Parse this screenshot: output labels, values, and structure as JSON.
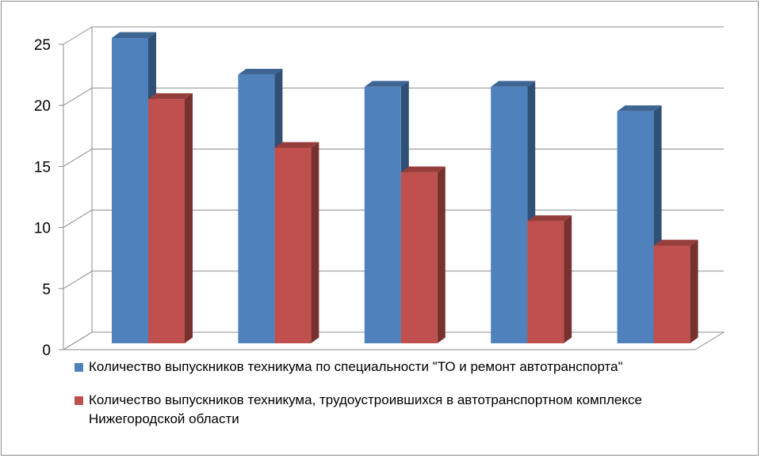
{
  "chart_data": {
    "type": "bar",
    "bar_style": "3d-clustered-column",
    "categories": [
      "",
      "",
      "",
      "",
      ""
    ],
    "series": [
      {
        "name": "Количество  выпускников  техникума по специальности \"ТО и ремонт автотранспорта\"",
        "color": "#4F81BD",
        "values": [
          25,
          22,
          21,
          21,
          19
        ]
      },
      {
        "name": "Количество  выпускников  техникума, трудоустроившихся  в автотранспортном комплексе  Нижегородской области",
        "color": "#C0504D",
        "values": [
          20,
          16,
          14,
          10,
          8
        ]
      }
    ],
    "ylim": [
      0,
      25
    ],
    "yticks": [
      "0",
      "5",
      "10",
      "15",
      "20",
      "25"
    ],
    "grid": true,
    "legend": "bottom",
    "title": "",
    "xlabel": "",
    "ylabel": ""
  }
}
